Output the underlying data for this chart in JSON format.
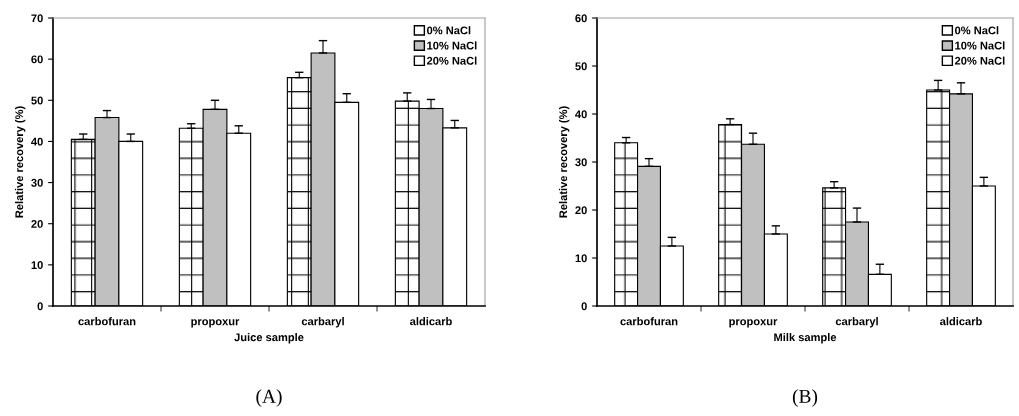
{
  "chart_data": [
    {
      "type": "bar",
      "xlabel": "Juice sample",
      "ylabel": "Relative recovery (%)",
      "categories": [
        "carbofuran",
        "propoxur",
        "carbaryl",
        "aldicarb"
      ],
      "ylim": [
        0,
        70
      ],
      "yticks": [
        0,
        10,
        20,
        30,
        40,
        50,
        60,
        70
      ],
      "grid": false,
      "legend": "top right",
      "annotations": [
        "(A)"
      ],
      "series": [
        {
          "name": "0% NaCl",
          "color": "#ffffff",
          "values": [
            40.5,
            43.2,
            55.5,
            49.8
          ],
          "errors": [
            [
              40.5,
              41.8
            ],
            [
              43.2,
              44.3
            ],
            [
              55.5,
              56.8
            ],
            [
              49.8,
              51.8
            ]
          ]
        },
        {
          "name": "10% NaCl",
          "color": "#c0c0c0",
          "values": [
            45.8,
            47.8,
            61.5,
            48.0
          ],
          "errors": [
            [
              45.8,
              47.5
            ],
            [
              47.8,
              50.0
            ],
            [
              61.5,
              64.5
            ],
            [
              48.0,
              50.2
            ]
          ]
        },
        {
          "name": "20% NaCl",
          "color": "#ffffff",
          "values": [
            40.0,
            42.0,
            49.5,
            43.3
          ],
          "errors": [
            [
              40.0,
              41.8
            ],
            [
              42.0,
              43.8
            ],
            [
              49.5,
              51.6
            ],
            [
              43.3,
              45.1
            ]
          ]
        }
      ]
    },
    {
      "type": "bar",
      "xlabel": "Milk sample",
      "ylabel": "Relative recovery (%)",
      "categories": [
        "carbofuran",
        "propoxur",
        "carbaryl",
        "aldicarb"
      ],
      "ylim": [
        0,
        60
      ],
      "yticks": [
        0,
        10,
        20,
        30,
        40,
        50,
        60
      ],
      "grid": false,
      "legend": "top right",
      "annotations": [
        "(B)"
      ],
      "series": [
        {
          "name": "0% NaCl",
          "color": "#ffffff",
          "values": [
            34.0,
            37.8,
            24.6,
            45.0
          ],
          "errors": [
            [
              34.0,
              35.1
            ],
            [
              37.8,
              39.0
            ],
            [
              24.6,
              25.9
            ],
            [
              45.0,
              47.0
            ]
          ]
        },
        {
          "name": "10% NaCl",
          "color": "#c0c0c0",
          "values": [
            29.1,
            33.7,
            17.5,
            44.2
          ],
          "errors": [
            [
              29.1,
              30.7
            ],
            [
              33.7,
              36.0
            ],
            [
              17.5,
              20.4
            ],
            [
              44.2,
              46.5
            ]
          ]
        },
        {
          "name": "20% NaCl",
          "color": "#ffffff",
          "values": [
            12.5,
            15.0,
            6.6,
            25.0
          ],
          "errors": [
            [
              12.5,
              14.3
            ],
            [
              15.0,
              16.7
            ],
            [
              6.6,
              8.7
            ],
            [
              25.0,
              26.8
            ]
          ]
        }
      ]
    }
  ]
}
